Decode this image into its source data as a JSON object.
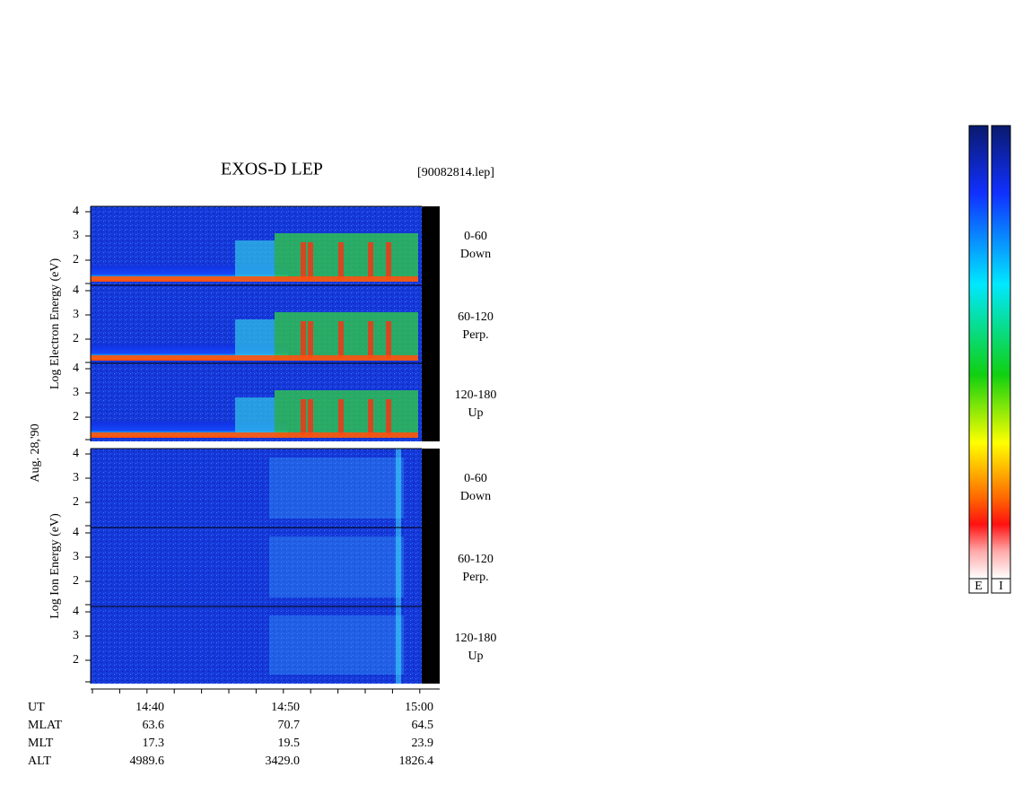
{
  "title": "EXOS-D LEP",
  "file": "[90082814.lep]",
  "date": "Aug. 28,'90",
  "electron": {
    "axis_label": "Log Electron Energy (eV)",
    "panels": [
      {
        "range": "0-60",
        "direction": "Down"
      },
      {
        "range": "60-120",
        "direction": "Perp."
      },
      {
        "range": "120-180",
        "direction": "Up"
      }
    ]
  },
  "ion": {
    "axis_label": "Log Ion Energy (eV)",
    "panels": [
      {
        "range": "0-60",
        "direction": "Down"
      },
      {
        "range": "60-120",
        "direction": "Perp."
      },
      {
        "range": "120-180",
        "direction": "Up"
      }
    ]
  },
  "yticks": [
    2,
    3,
    4
  ],
  "ephemeris": {
    "rows": [
      {
        "name": "UT",
        "values": [
          "14:40",
          "14:50",
          "15:00"
        ]
      },
      {
        "name": "MLAT",
        "values": [
          "63.6",
          "70.7",
          "64.5"
        ]
      },
      {
        "name": "MLT",
        "values": [
          "17.3",
          "19.5",
          "23.9"
        ]
      },
      {
        "name": "ALT",
        "values": [
          "4989.6",
          "3429.0",
          "1826.4"
        ]
      }
    ]
  },
  "colorbars": [
    "E",
    "I"
  ]
}
